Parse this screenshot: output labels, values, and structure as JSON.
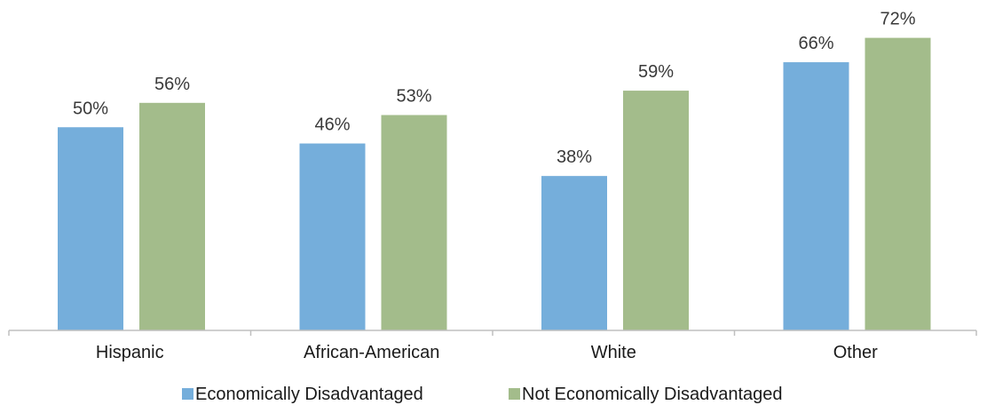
{
  "chart_data": {
    "type": "bar",
    "categories": [
      "Hispanic",
      "African-American",
      "White",
      "Other"
    ],
    "series": [
      {
        "name": "Economically Disadvantaged",
        "values": [
          50,
          46,
          38,
          66
        ],
        "labels": [
          "50%",
          "46%",
          "38%",
          "66%"
        ],
        "color": "#75AEDB"
      },
      {
        "name": "Not Economically Disadvantaged",
        "values": [
          56,
          53,
          59,
          72
        ],
        "labels": [
          "56%",
          "53%",
          "59%",
          "72%"
        ],
        "color": "#A3BC8B"
      }
    ],
    "ylim": [
      0,
      78
    ],
    "grid": false,
    "legend_position": "bottom",
    "axis_color": "#BFBFBF"
  }
}
